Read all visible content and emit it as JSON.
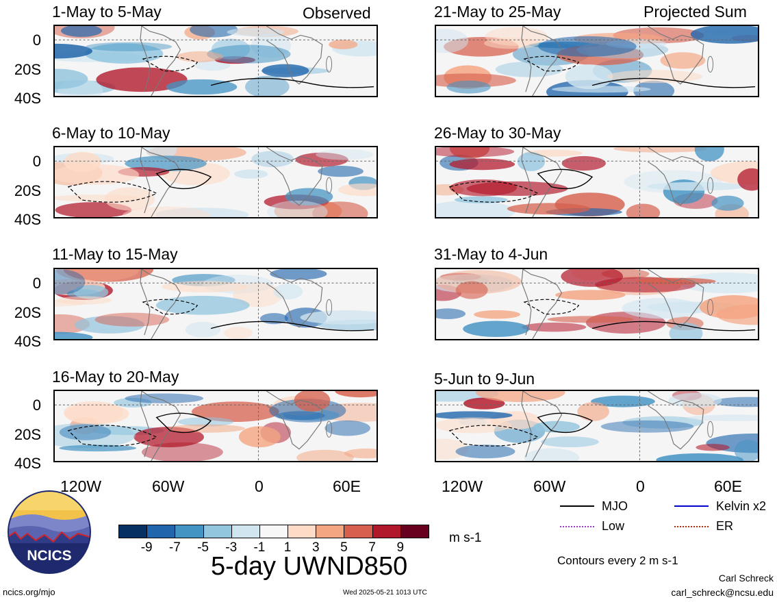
{
  "header": {
    "left_label": "Observed",
    "right_label": "Projected Sum"
  },
  "panels_left": [
    {
      "title": "1-May to 5-May"
    },
    {
      "title": "6-May to 10-May"
    },
    {
      "title": "11-May to 15-May"
    },
    {
      "title": "16-May to 20-May"
    }
  ],
  "panels_right": [
    {
      "title": "21-May to 25-May"
    },
    {
      "title": "26-May to 30-May"
    },
    {
      "title": "31-May to 4-Jun"
    },
    {
      "title": "5-Jun to 9-Jun"
    }
  ],
  "y_axis": [
    "0",
    "20S",
    "40S"
  ],
  "x_axis": [
    "120W",
    "60W",
    "0",
    "60E"
  ],
  "colorbar": {
    "labels": [
      "-9",
      "-7",
      "-5",
      "-3",
      "-1",
      "1",
      "3",
      "5",
      "7",
      "9"
    ],
    "colors": [
      "#053061",
      "#2166ac",
      "#4393c3",
      "#92c5de",
      "#d1e5f0",
      "#f7f7f7",
      "#fddbc7",
      "#f4a582",
      "#d6604d",
      "#b2182b",
      "#67001f"
    ],
    "units": "m s-1"
  },
  "main_title": "5-day UWND850",
  "legend": {
    "items": [
      {
        "label": "MJO",
        "color": "#000000"
      },
      {
        "label": "Kelvin x2",
        "color": "#0000cc"
      },
      {
        "label": "Low",
        "color": "#9933cc"
      },
      {
        "label": "ER",
        "color": "#cc2200"
      }
    ],
    "contours": "Contours every 2 m s-1"
  },
  "logo": {
    "text": "NCICS"
  },
  "footer": {
    "url": "ncics.org/mjo",
    "timestamp": "Wed 2025-05-21 1013 UTC",
    "author": "Carl Schreck",
    "email": "carl_schreck@ncsu.edu"
  }
}
